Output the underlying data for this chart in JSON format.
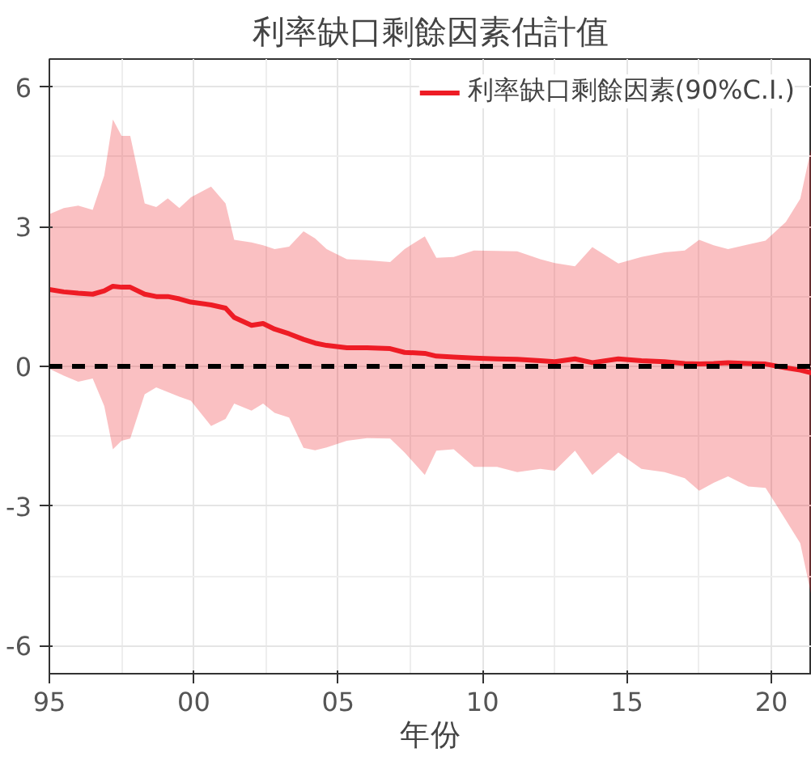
{
  "chart_data": {
    "type": "line",
    "title": "利率缺口剩餘因素估計值",
    "xlabel": "年份",
    "x": [
      1995.0,
      1995.5,
      1996.0,
      1996.5,
      1996.9,
      1997.2,
      1997.5,
      1997.8,
      1998.3,
      1998.7,
      1999.1,
      1999.5,
      1999.9,
      2000.6,
      2001.1,
      2001.4,
      2002.0,
      2002.4,
      2002.8,
      2003.3,
      2003.8,
      2004.2,
      2004.6,
      2005.3,
      2006.0,
      2006.8,
      2007.3,
      2008.0,
      2008.4,
      2009.0,
      2009.7,
      2010.5,
      2011.2,
      2012.0,
      2012.5,
      2013.2,
      2013.8,
      2014.7,
      2015.5,
      2016.3,
      2017.0,
      2017.5,
      2018.0,
      2018.5,
      2019.2,
      2019.8,
      2020.5,
      2021.0,
      2021.4
    ],
    "series": [
      {
        "name": "利率缺口剩餘因素(90%C.I.)",
        "color": "#ee1c25",
        "values": [
          1.65,
          1.6,
          1.57,
          1.55,
          1.62,
          1.72,
          1.7,
          1.7,
          1.55,
          1.5,
          1.5,
          1.45,
          1.38,
          1.32,
          1.25,
          1.05,
          0.88,
          0.92,
          0.8,
          0.7,
          0.58,
          0.5,
          0.45,
          0.4,
          0.4,
          0.38,
          0.3,
          0.28,
          0.22,
          0.2,
          0.18,
          0.16,
          0.15,
          0.12,
          0.1,
          0.16,
          0.08,
          0.16,
          0.12,
          0.1,
          0.06,
          0.05,
          0.06,
          0.08,
          0.06,
          0.05,
          -0.03,
          -0.08,
          -0.14
        ],
        "upper": [
          3.27,
          3.4,
          3.45,
          3.36,
          4.1,
          5.3,
          4.95,
          4.95,
          3.5,
          3.42,
          3.61,
          3.4,
          3.63,
          3.86,
          3.5,
          2.72,
          2.66,
          2.6,
          2.52,
          2.57,
          2.9,
          2.75,
          2.52,
          2.3,
          2.28,
          2.24,
          2.52,
          2.79,
          2.33,
          2.35,
          2.49,
          2.48,
          2.47,
          2.3,
          2.22,
          2.15,
          2.56,
          2.21,
          2.35,
          2.45,
          2.49,
          2.72,
          2.6,
          2.52,
          2.62,
          2.7,
          3.1,
          3.6,
          4.75
        ],
        "lower": [
          -0.05,
          -0.2,
          -0.33,
          -0.26,
          -0.85,
          -1.78,
          -1.6,
          -1.55,
          -0.6,
          -0.45,
          -0.55,
          -0.65,
          -0.74,
          -1.28,
          -1.13,
          -0.8,
          -0.95,
          -0.8,
          -1.0,
          -1.1,
          -1.75,
          -1.8,
          -1.74,
          -1.6,
          -1.54,
          -1.55,
          -1.85,
          -2.33,
          -1.81,
          -1.78,
          -2.16,
          -2.16,
          -2.27,
          -2.2,
          -2.24,
          -1.81,
          -2.33,
          -1.85,
          -2.2,
          -2.27,
          -2.4,
          -2.67,
          -2.5,
          -2.36,
          -2.58,
          -2.61,
          -3.3,
          -3.8,
          -4.96
        ]
      }
    ],
    "xlim": [
      1995,
      2021.4
    ],
    "ylim": [
      -6.6,
      6.6
    ],
    "xticks": [
      {
        "value": 1995,
        "label": "95"
      },
      {
        "value": 2000,
        "label": "00"
      },
      {
        "value": 2005,
        "label": "05"
      },
      {
        "value": 2010,
        "label": "10"
      },
      {
        "value": 2015,
        "label": "15"
      },
      {
        "value": 2020,
        "label": "20"
      }
    ],
    "yticks": [
      -6,
      -3,
      0,
      3,
      6
    ],
    "ref_lines": [
      {
        "axis": "y",
        "value": 0,
        "color": "#000000",
        "line_style": "dashed"
      }
    ],
    "grid": true,
    "legend": "top right",
    "marker": "none",
    "line_style": "solid"
  }
}
